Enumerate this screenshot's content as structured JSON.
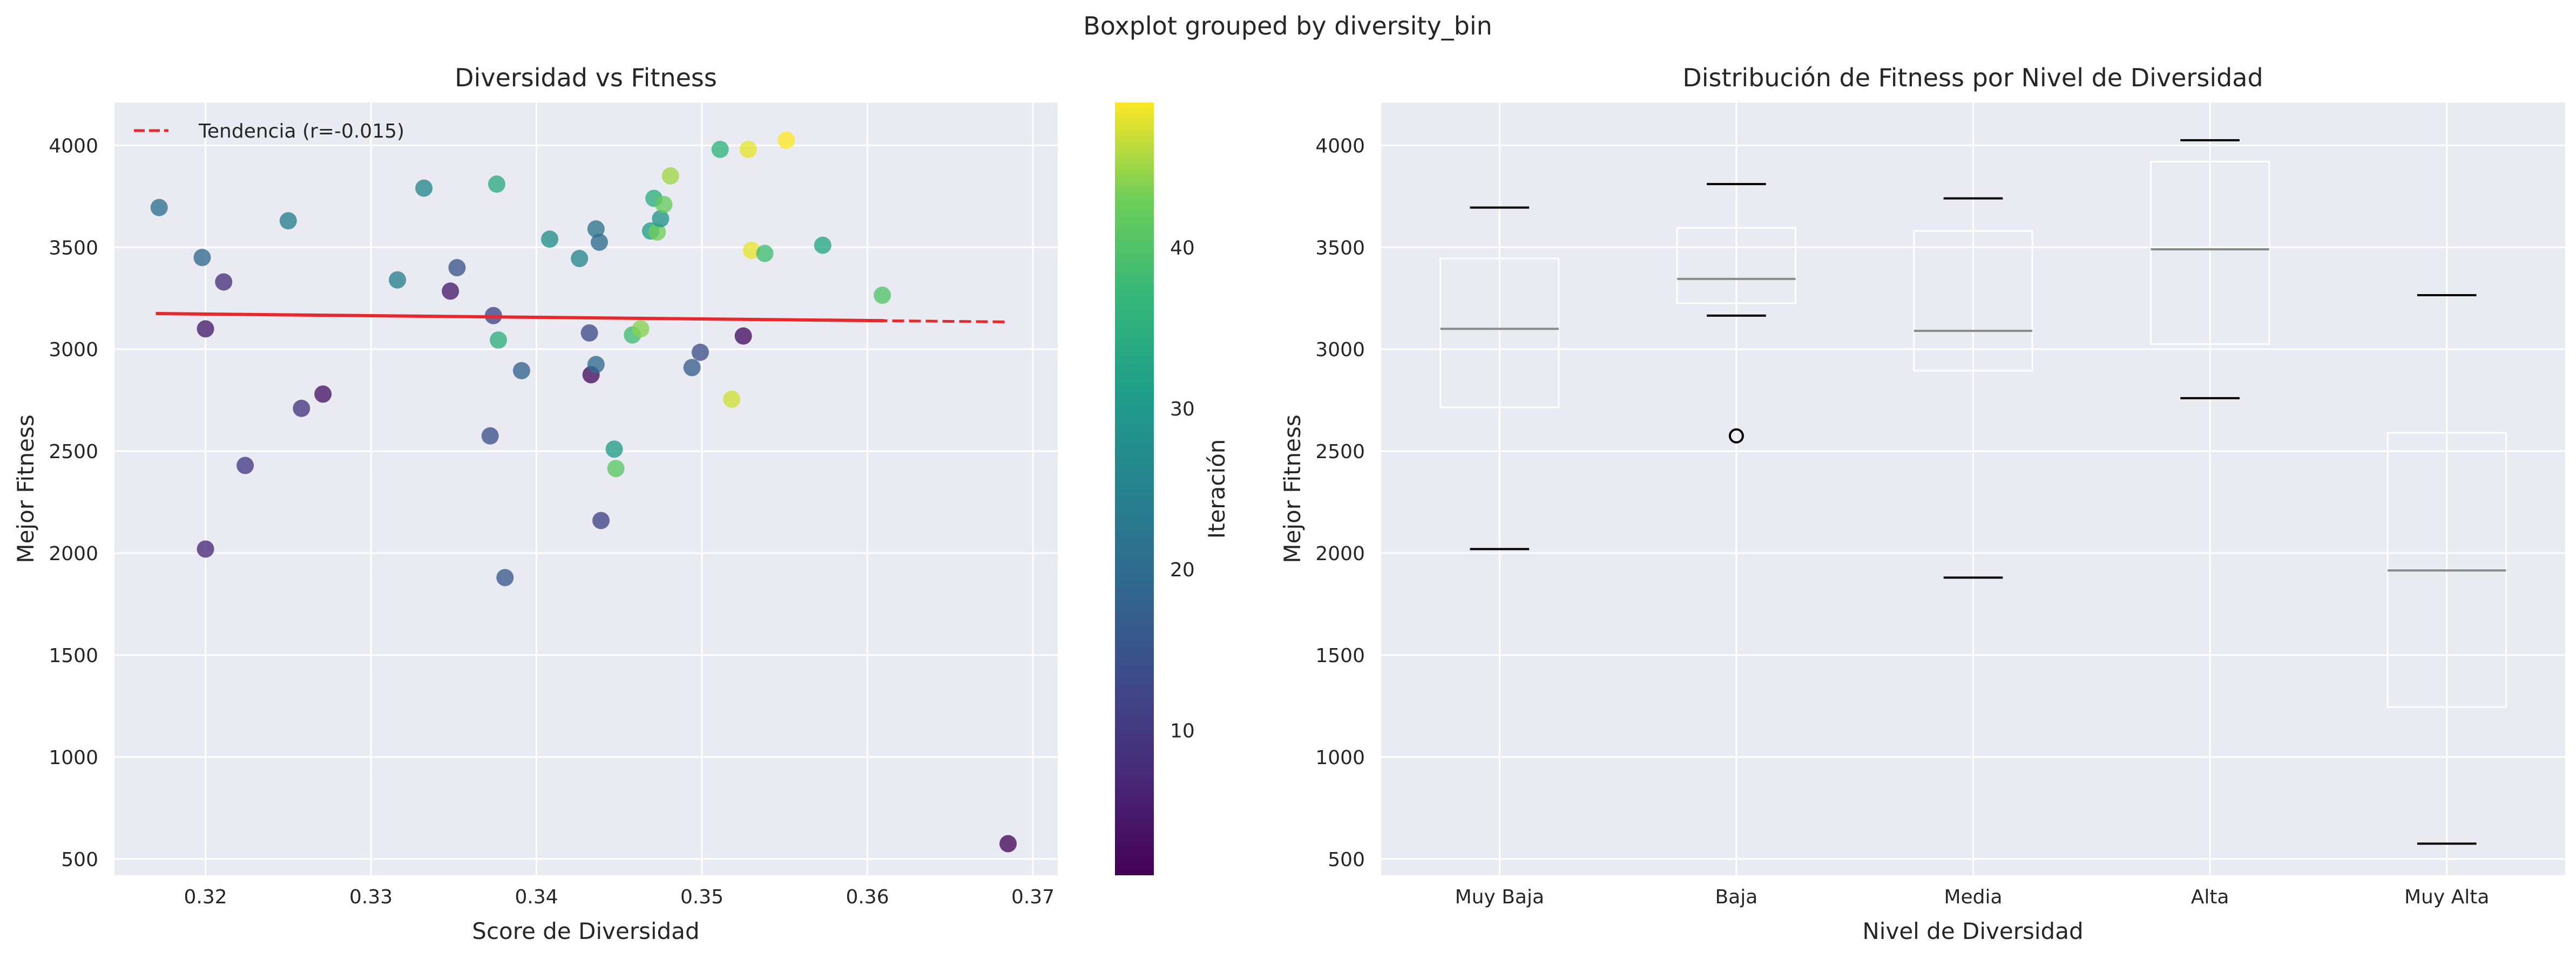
{
  "suptitle": "Boxplot grouped by diversity_bin",
  "chart_data": [
    {
      "type": "scatter",
      "title": "Diversidad vs Fitness",
      "xlabel": "Score de Diversidad",
      "ylabel": "Mejor Fitness",
      "xlim": [
        0.3145,
        0.3715
      ],
      "ylim": [
        420,
        4210
      ],
      "xticks": [
        "0.32",
        "0.33",
        "0.34",
        "0.35",
        "0.36",
        "0.37"
      ],
      "yticks": [
        "500",
        "1000",
        "1500",
        "2000",
        "2500",
        "3000",
        "3500",
        "4000"
      ],
      "grid": true,
      "colormap": "viridis",
      "colorbar": {
        "label": "Iteración",
        "range": [
          1,
          49
        ],
        "ticks": [
          "10",
          "20",
          "30",
          "40"
        ]
      },
      "trendline": {
        "label": "Tendencia (r=-0.015)",
        "x": [
          0.317,
          0.3685
        ],
        "y": [
          3175,
          3134
        ],
        "solid_until": 0.361,
        "color": "#e8282b"
      },
      "legend_position": "top-left",
      "points": [
        {
          "x": 0.3685,
          "y": 575,
          "c": 2
        },
        {
          "x": 0.3172,
          "y": 3695,
          "c": 21
        },
        {
          "x": 0.3198,
          "y": 3450,
          "c": 19
        },
        {
          "x": 0.32,
          "y": 3100,
          "c": 5
        },
        {
          "x": 0.3211,
          "y": 3330,
          "c": 8
        },
        {
          "x": 0.3224,
          "y": 2430,
          "c": 10
        },
        {
          "x": 0.32,
          "y": 2020,
          "c": 7
        },
        {
          "x": 0.325,
          "y": 3630,
          "c": 24
        },
        {
          "x": 0.3258,
          "y": 2710,
          "c": 9
        },
        {
          "x": 0.3271,
          "y": 2780,
          "c": 4
        },
        {
          "x": 0.3316,
          "y": 3340,
          "c": 24
        },
        {
          "x": 0.3332,
          "y": 3790,
          "c": 26
        },
        {
          "x": 0.3348,
          "y": 3285,
          "c": 5
        },
        {
          "x": 0.3352,
          "y": 3400,
          "c": 15
        },
        {
          "x": 0.3372,
          "y": 2575,
          "c": 14
        },
        {
          "x": 0.3374,
          "y": 3165,
          "c": 12
        },
        {
          "x": 0.3376,
          "y": 3810,
          "c": 34
        },
        {
          "x": 0.3377,
          "y": 3045,
          "c": 35
        },
        {
          "x": 0.3381,
          "y": 1880,
          "c": 16
        },
        {
          "x": 0.3391,
          "y": 2895,
          "c": 18
        },
        {
          "x": 0.3408,
          "y": 3540,
          "c": 28
        },
        {
          "x": 0.3426,
          "y": 3445,
          "c": 26
        },
        {
          "x": 0.3432,
          "y": 3080,
          "c": 13
        },
        {
          "x": 0.3433,
          "y": 2875,
          "c": 3
        },
        {
          "x": 0.3436,
          "y": 3590,
          "c": 22
        },
        {
          "x": 0.3436,
          "y": 2925,
          "c": 20
        },
        {
          "x": 0.3438,
          "y": 3525,
          "c": 20
        },
        {
          "x": 0.3439,
          "y": 2160,
          "c": 12
        },
        {
          "x": 0.3447,
          "y": 2510,
          "c": 31
        },
        {
          "x": 0.3448,
          "y": 2415,
          "c": 41
        },
        {
          "x": 0.3458,
          "y": 3070,
          "c": 38
        },
        {
          "x": 0.3463,
          "y": 3100,
          "c": 44
        },
        {
          "x": 0.3469,
          "y": 3580,
          "c": 31
        },
        {
          "x": 0.3471,
          "y": 3740,
          "c": 35
        },
        {
          "x": 0.3473,
          "y": 3575,
          "c": 43
        },
        {
          "x": 0.3475,
          "y": 3640,
          "c": 29
        },
        {
          "x": 0.3477,
          "y": 3710,
          "c": 42
        },
        {
          "x": 0.3481,
          "y": 3850,
          "c": 45
        },
        {
          "x": 0.3494,
          "y": 2910,
          "c": 17
        },
        {
          "x": 0.3499,
          "y": 2985,
          "c": 14
        },
        {
          "x": 0.3511,
          "y": 3980,
          "c": 36
        },
        {
          "x": 0.3518,
          "y": 2755,
          "c": 47
        },
        {
          "x": 0.3525,
          "y": 3065,
          "c": 3
        },
        {
          "x": 0.3528,
          "y": 3980,
          "c": 48
        },
        {
          "x": 0.353,
          "y": 3485,
          "c": 48
        },
        {
          "x": 0.3538,
          "y": 3470,
          "c": 38
        },
        {
          "x": 0.3551,
          "y": 4025,
          "c": 49
        },
        {
          "x": 0.3573,
          "y": 3510,
          "c": 33
        },
        {
          "x": 0.3609,
          "y": 3265,
          "c": 40
        }
      ]
    },
    {
      "type": "boxplot",
      "title": "Distribución de Fitness por Nivel de Diversidad",
      "xlabel": "Nivel de Diversidad",
      "ylabel": "Mejor Fitness",
      "ylim": [
        420,
        4210
      ],
      "yticks": [
        "500",
        "1000",
        "1500",
        "2000",
        "2500",
        "3000",
        "3500",
        "4000"
      ],
      "grid": true,
      "categories": [
        "Muy Baja",
        "Baja",
        "Media",
        "Alta",
        "Muy Alta"
      ],
      "boxes": [
        {
          "whisker_low": 2020,
          "q1": 2715,
          "median": 3100,
          "q3": 3445,
          "whisker_high": 3695,
          "outliers": []
        },
        {
          "whisker_low": 3165,
          "q1": 3225,
          "median": 3345,
          "q3": 3595,
          "whisker_high": 3810,
          "outliers": [
            2575
          ]
        },
        {
          "whisker_low": 1880,
          "q1": 2895,
          "median": 3090,
          "q3": 3580,
          "whisker_high": 3740,
          "outliers": []
        },
        {
          "whisker_low": 2760,
          "q1": 3025,
          "median": 3490,
          "q3": 3920,
          "whisker_high": 4025,
          "outliers": []
        },
        {
          "whisker_low": 575,
          "q1": 1245,
          "median": 1915,
          "q3": 2590,
          "whisker_high": 3265,
          "outliers": []
        }
      ]
    }
  ]
}
